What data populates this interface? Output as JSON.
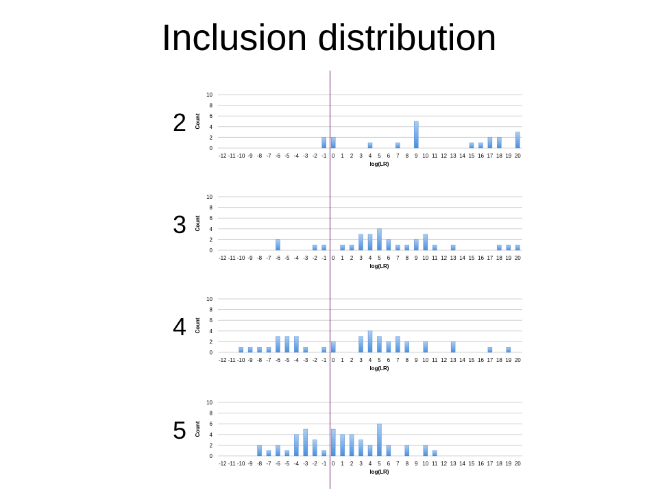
{
  "slide": {
    "title": "Inclusion distribution",
    "divider_color": "#6b1f6b"
  },
  "colors": {
    "bar_top": "#aecdf2",
    "bar_bottom": "#4a8fdc",
    "bar_edge": "#3f80d0",
    "grid": "#d0d0d0",
    "axis_text": "#000000",
    "panel_label": "#000000"
  },
  "chart_data": [
    {
      "type": "bar",
      "panel_label": "2",
      "xlabel": "log(LR)",
      "ylabel": "Count",
      "ylim": [
        0,
        10
      ],
      "yticks": [
        0,
        2,
        4,
        6,
        8,
        10
      ],
      "grid": true,
      "categories": [
        "-12",
        "-11",
        "-10",
        "-9",
        "-8",
        "-7",
        "-6",
        "-5",
        "-4",
        "-3",
        "-2",
        "-1",
        "0",
        "1",
        "2",
        "3",
        "4",
        "5",
        "6",
        "7",
        "8",
        "9",
        "10",
        "11",
        "12",
        "13",
        "14",
        "15",
        "16",
        "17",
        "18",
        "19",
        "20"
      ],
      "values": [
        0,
        0,
        0,
        0,
        0,
        0,
        0,
        0,
        0,
        0,
        0,
        2,
        2,
        0,
        0,
        0,
        1,
        0,
        0,
        1,
        0,
        5,
        0,
        0,
        0,
        0,
        0,
        1,
        1,
        2,
        2,
        0,
        3
      ]
    },
    {
      "type": "bar",
      "panel_label": "3",
      "xlabel": "log(LR)",
      "ylabel": "Count",
      "ylim": [
        0,
        10
      ],
      "yticks": [
        0,
        2,
        4,
        6,
        8,
        10
      ],
      "grid": true,
      "categories": [
        "-12",
        "-11",
        "-10",
        "-9",
        "-8",
        "-7",
        "-6",
        "-5",
        "-4",
        "-3",
        "-2",
        "-1",
        "0",
        "1",
        "2",
        "3",
        "4",
        "5",
        "6",
        "7",
        "8",
        "9",
        "10",
        "11",
        "12",
        "13",
        "14",
        "15",
        "16",
        "17",
        "18",
        "19",
        "20"
      ],
      "values": [
        0,
        0,
        0,
        0,
        0,
        0,
        2,
        0,
        0,
        0,
        1,
        1,
        0,
        1,
        1,
        3,
        3,
        4,
        2,
        1,
        1,
        2,
        3,
        1,
        0,
        1,
        0,
        0,
        0,
        0,
        1,
        1,
        1
      ]
    },
    {
      "type": "bar",
      "panel_label": "4",
      "xlabel": "log(LR)",
      "ylabel": "Count",
      "ylim": [
        0,
        10
      ],
      "yticks": [
        0,
        2,
        4,
        6,
        8,
        10
      ],
      "grid": true,
      "categories": [
        "-12",
        "-11",
        "-10",
        "-9",
        "-8",
        "-7",
        "-6",
        "-5",
        "-4",
        "-3",
        "-2",
        "-1",
        "0",
        "1",
        "2",
        "3",
        "4",
        "5",
        "6",
        "7",
        "8",
        "9",
        "10",
        "11",
        "12",
        "13",
        "14",
        "15",
        "16",
        "17",
        "18",
        "19",
        "20"
      ],
      "values": [
        0,
        0,
        1,
        1,
        1,
        1,
        3,
        3,
        3,
        1,
        0,
        1,
        2,
        0,
        0,
        3,
        4,
        3,
        2,
        3,
        2,
        0,
        2,
        0,
        0,
        2,
        0,
        0,
        0,
        1,
        0,
        1,
        0
      ]
    },
    {
      "type": "bar",
      "panel_label": "5",
      "xlabel": "log(LR)",
      "ylabel": "Count",
      "ylim": [
        0,
        10
      ],
      "yticks": [
        0,
        2,
        4,
        6,
        8,
        10
      ],
      "grid": true,
      "categories": [
        "-12",
        "-11",
        "-10",
        "-9",
        "-8",
        "-7",
        "-6",
        "-5",
        "-4",
        "-3",
        "-2",
        "-1",
        "0",
        "1",
        "2",
        "3",
        "4",
        "5",
        "6",
        "7",
        "8",
        "9",
        "10",
        "11",
        "12",
        "13",
        "14",
        "15",
        "16",
        "17",
        "18",
        "19",
        "20"
      ],
      "values": [
        0,
        0,
        0,
        0,
        2,
        1,
        2,
        1,
        4,
        5,
        3,
        1,
        5,
        4,
        4,
        3,
        2,
        6,
        2,
        0,
        2,
        0,
        2,
        1,
        0,
        0,
        0,
        0,
        0,
        0,
        0,
        0,
        0
      ]
    }
  ]
}
